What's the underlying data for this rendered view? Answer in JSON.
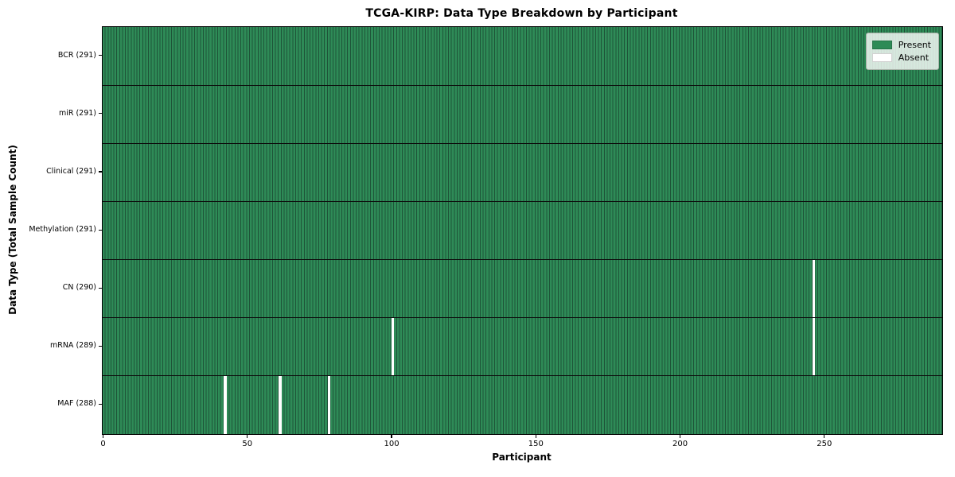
{
  "chart_data": {
    "type": "heatmap",
    "title": "TCGA-KIRP: Data Type Breakdown by Participant",
    "xlabel": "Participant",
    "ylabel": "Data Type (Total Sample Count)",
    "x_ticks": [
      0,
      50,
      100,
      150,
      200,
      250
    ],
    "xlim": [
      0,
      291
    ],
    "n_participants": 291,
    "grid": false,
    "legend_position": "upper right",
    "rows": [
      {
        "label": "BCR (291)",
        "data_type": "BCR",
        "present_count": 291,
        "missing_participants": []
      },
      {
        "label": "miR (291)",
        "data_type": "miR",
        "present_count": 291,
        "missing_participants": []
      },
      {
        "label": "Clinical (291)",
        "data_type": "Clinical",
        "present_count": 291,
        "missing_participants": []
      },
      {
        "label": "Methylation (291)",
        "data_type": "Methylation",
        "present_count": 291,
        "missing_participants": []
      },
      {
        "label": "CN (290)",
        "data_type": "CN",
        "present_count": 290,
        "missing_participants": [
          246
        ]
      },
      {
        "label": "mRNA (289)",
        "data_type": "mRNA",
        "present_count": 289,
        "missing_participants": [
          100,
          246
        ]
      },
      {
        "label": "MAF (288)",
        "data_type": "MAF",
        "present_count": 288,
        "missing_participants": [
          42,
          61,
          78
        ]
      }
    ],
    "legend": [
      {
        "label": "Present",
        "color": "#2e8b57"
      },
      {
        "label": "Absent",
        "color": "#ffffff"
      }
    ],
    "colors": {
      "present": "#2e8b57",
      "absent": "#ffffff",
      "bar_edge": "#1e5438",
      "row_separator": "#0d0d0d",
      "plot_border": "#000000"
    }
  }
}
